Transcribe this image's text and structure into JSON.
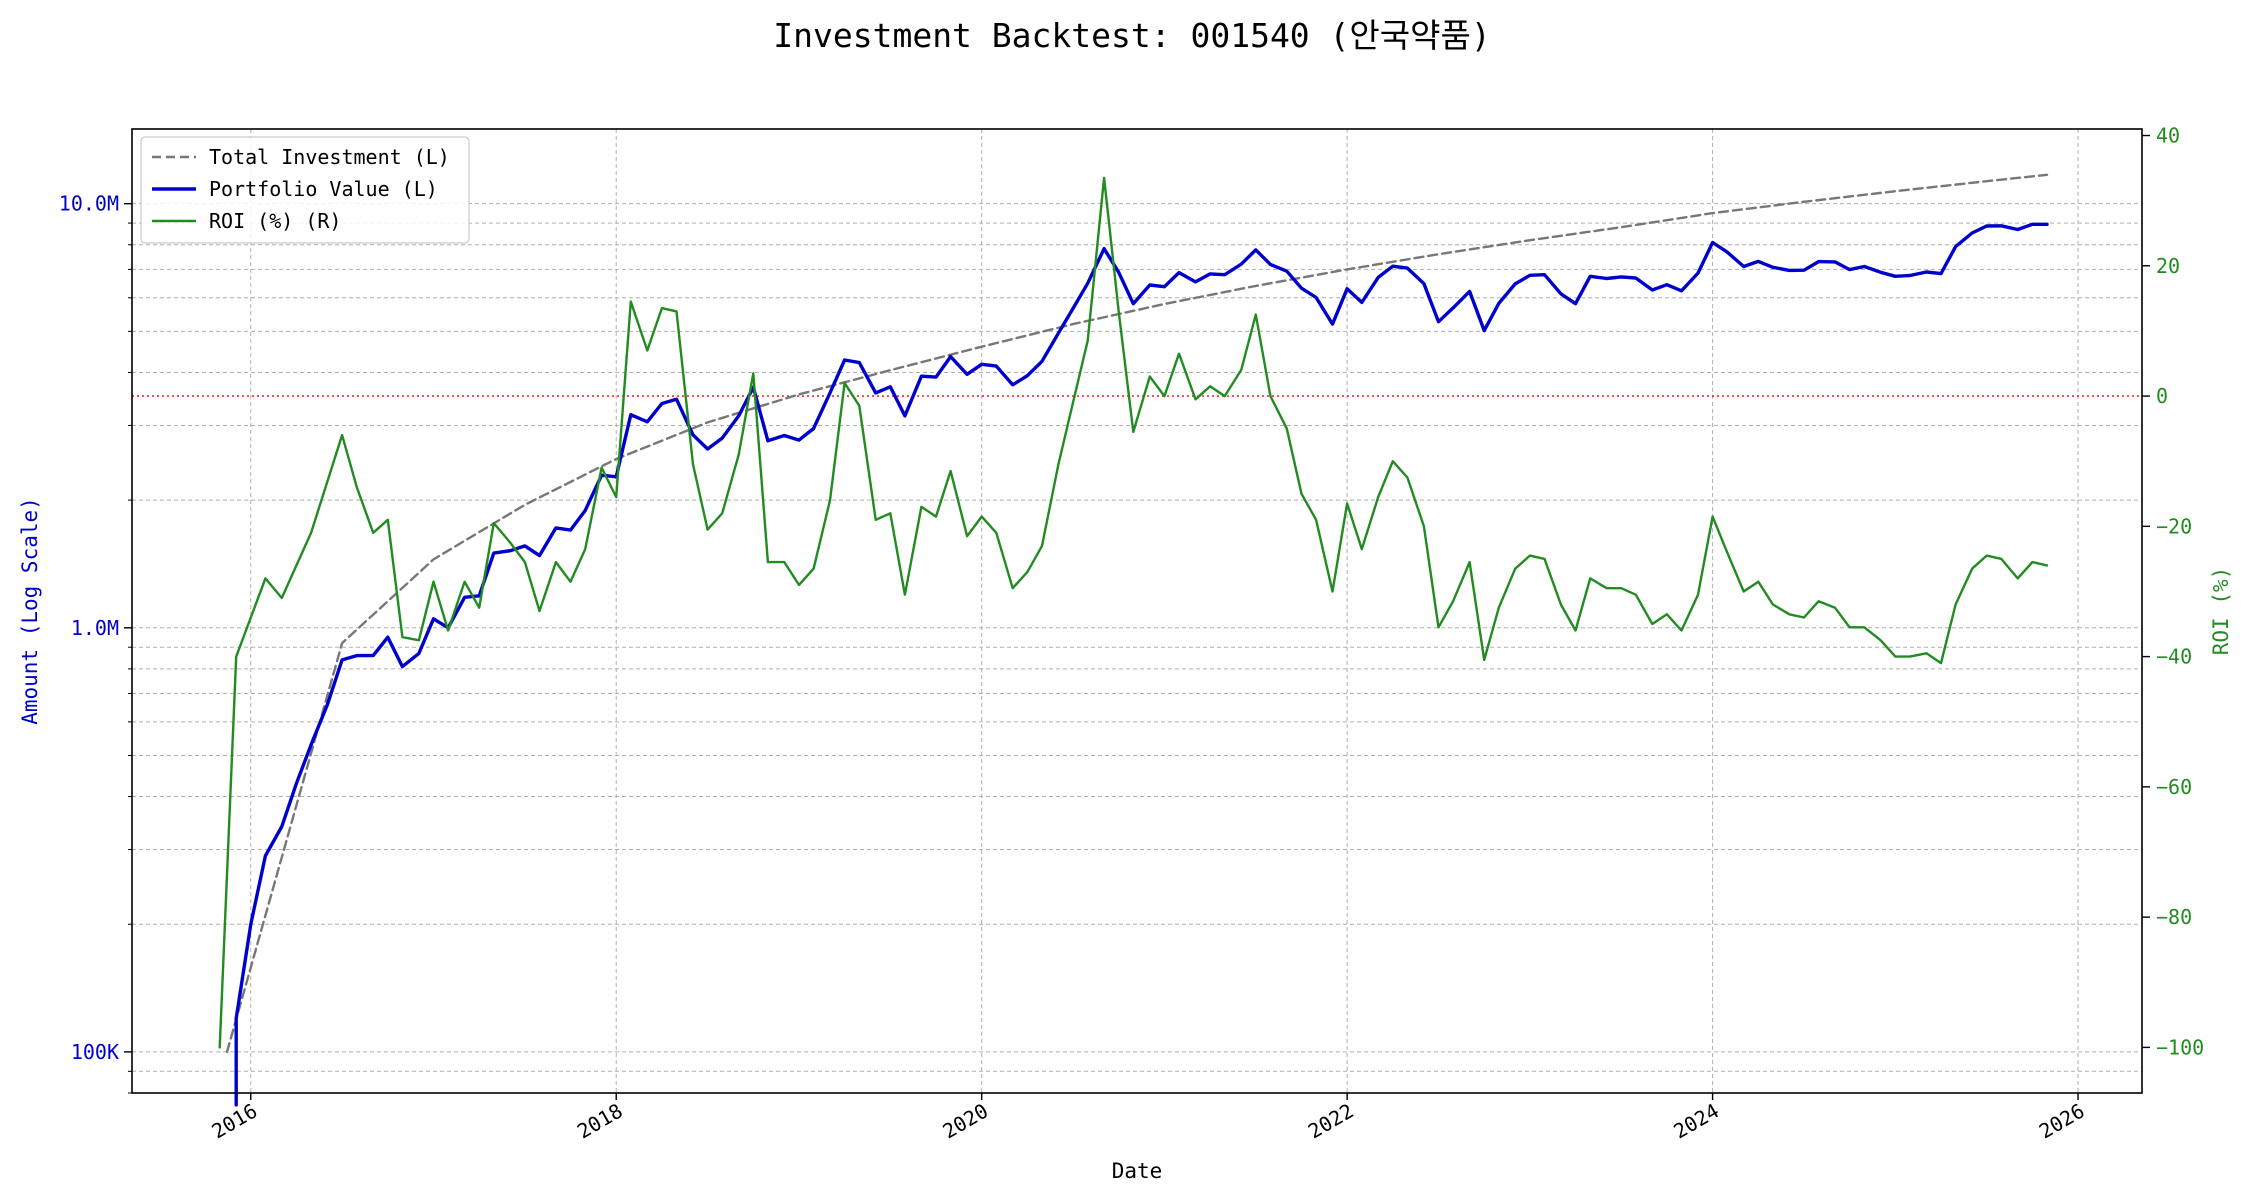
{
  "chart_data": {
    "type": "line",
    "title": "Investment Backtest: 001540 (안국약품)",
    "xlabel": "Date",
    "ylabel_left": "Amount (Log Scale)",
    "ylabel_right": "ROI (%)",
    "x_ticks": [
      "2016",
      "2018",
      "2020",
      "2022",
      "2024",
      "2026"
    ],
    "x_range": [
      2015.35,
      2026.35
    ],
    "left_axis": {
      "scale": "log",
      "ylim": [
        80000,
        15000000
      ],
      "ticks": [
        100000,
        1000000,
        10000000
      ],
      "tick_labels": [
        "100K",
        "1.0M",
        "10.0M"
      ],
      "color": "#0000cc"
    },
    "right_axis": {
      "scale": "linear",
      "ylim": [
        -107,
        41
      ],
      "ticks": [
        -100,
        -80,
        -60,
        -40,
        -20,
        0,
        20,
        40
      ],
      "tick_labels": [
        "−100",
        "−80",
        "−60",
        "−40",
        "−20",
        "0",
        "20",
        "40"
      ],
      "color": "#228b22"
    },
    "grid": true,
    "reference_line": {
      "axis": "right",
      "value": 0,
      "color": "#ff0000",
      "style": "dotted"
    },
    "legend": {
      "position": "top-left",
      "entries": [
        "Total Investment (L)",
        "Portfolio Value (L)",
        "ROI (%) (R)"
      ]
    },
    "series": [
      {
        "name": "Total Investment (L)",
        "axis": "left",
        "color": "#777777",
        "style": "dashed",
        "x": [
          2015.87,
          2016.5,
          2017.0,
          2017.5,
          2018.0,
          2018.5,
          2019.0,
          2019.5,
          2020.0,
          2020.5,
          2021.0,
          2021.5,
          2022.0,
          2022.5,
          2023.0,
          2023.5,
          2024.0,
          2024.5,
          2025.0,
          2025.5,
          2025.83
        ],
        "y": [
          100000,
          920000,
          1450000,
          1950000,
          2500000,
          3050000,
          3550000,
          4050000,
          4600000,
          5200000,
          5800000,
          6400000,
          7000000,
          7600000,
          8200000,
          8800000,
          9500000,
          10100000,
          10700000,
          11300000,
          11700000
        ]
      },
      {
        "name": "Portfolio Value (L)",
        "axis": "left",
        "color": "#0000cc",
        "style": "solid",
        "x": [
          2015.92,
          2015.92,
          2016.0,
          2016.08,
          2016.17,
          2016.25,
          2016.33,
          2016.42,
          2016.5,
          2016.58,
          2016.67,
          2016.75,
          2016.83,
          2016.92,
          2017.0,
          2017.08,
          2017.17,
          2017.25,
          2017.33,
          2017.42,
          2017.5,
          2017.58,
          2017.67,
          2017.75,
          2017.83,
          2017.92,
          2018.0,
          2018.08,
          2018.17,
          2018.25,
          2018.33,
          2018.42,
          2018.5,
          2018.58,
          2018.67,
          2018.75,
          2018.83,
          2018.92,
          2019.0,
          2019.08,
          2019.17,
          2019.25,
          2019.33,
          2019.42,
          2019.5,
          2019.58,
          2019.67,
          2019.75,
          2019.83,
          2019.92,
          2020.0,
          2020.08,
          2020.17,
          2020.25,
          2020.33,
          2020.42,
          2020.5,
          2020.58,
          2020.67,
          2020.75,
          2020.83,
          2020.92,
          2021.0,
          2021.08,
          2021.17,
          2021.25,
          2021.33,
          2021.42,
          2021.5,
          2021.58,
          2021.67,
          2021.75,
          2021.83,
          2021.92,
          2022.0,
          2022.08,
          2022.17,
          2022.25,
          2022.33,
          2022.42,
          2022.5,
          2022.58,
          2022.67,
          2022.75,
          2022.83,
          2022.92,
          2023.0,
          2023.08,
          2023.17,
          2023.25,
          2023.33,
          2023.42,
          2023.5,
          2023.58,
          2023.67,
          2023.75,
          2023.83,
          2023.92,
          2024.0,
          2024.08,
          2024.17,
          2024.25,
          2024.33,
          2024.42,
          2024.5,
          2024.58,
          2024.67,
          2024.75,
          2024.83,
          2024.92,
          2025.0,
          2025.08,
          2025.17,
          2025.25,
          2025.33,
          2025.42,
          2025.5,
          2025.58,
          2025.67,
          2025.75,
          2025.83
        ],
        "y": [
          75000,
          120000,
          200000,
          290000,
          340000,
          430000,
          530000,
          660000,
          840000,
          860000,
          860000,
          950000,
          810000,
          870000,
          1050000,
          1000000,
          1180000,
          1190000,
          1500000,
          1520000,
          1560000,
          1480000,
          1720000,
          1700000,
          1890000,
          2290000,
          2270000,
          3180000,
          3060000,
          3380000,
          3460000,
          2850000,
          2640000,
          2800000,
          3160000,
          3690000,
          2760000,
          2840000,
          2770000,
          2950000,
          3580000,
          4280000,
          4220000,
          3580000,
          3700000,
          3160000,
          3920000,
          3900000,
          4360000,
          3960000,
          4180000,
          4140000,
          3740000,
          3930000,
          4250000,
          4950000,
          5660000,
          6490000,
          7830000,
          6890000,
          5810000,
          6430000,
          6370000,
          6880000,
          6540000,
          6830000,
          6800000,
          7200000,
          7780000,
          7190000,
          6930000,
          6320000,
          6010000,
          5200000,
          6300000,
          5850000,
          6700000,
          7120000,
          7050000,
          6480000,
          5270000,
          5680000,
          6210000,
          5020000,
          5820000,
          6470000,
          6780000,
          6800000,
          6130000,
          5810000,
          6740000,
          6660000,
          6720000,
          6680000,
          6260000,
          6440000,
          6230000,
          6860000,
          8100000,
          7690000,
          7110000,
          7310000,
          7080000,
          6960000,
          6970000,
          7300000,
          7290000,
          6990000,
          7110000,
          6890000,
          6740000,
          6770000,
          6900000,
          6840000,
          7920000,
          8530000,
          8860000,
          8870000,
          8690000,
          8940000,
          8940000
        ]
      },
      {
        "name": "ROI (%) (R)",
        "axis": "right",
        "color": "#228b22",
        "style": "solid",
        "x": [
          2015.83,
          2015.92,
          2016.08,
          2016.17,
          2016.33,
          2016.5,
          2016.58,
          2016.67,
          2016.75,
          2016.83,
          2016.92,
          2017.0,
          2017.08,
          2017.17,
          2017.25,
          2017.33,
          2017.42,
          2017.5,
          2017.58,
          2017.67,
          2017.75,
          2017.83,
          2017.92,
          2018.0,
          2018.08,
          2018.17,
          2018.25,
          2018.33,
          2018.42,
          2018.5,
          2018.58,
          2018.67,
          2018.75,
          2018.83,
          2018.92,
          2019.0,
          2019.08,
          2019.17,
          2019.25,
          2019.33,
          2019.42,
          2019.5,
          2019.58,
          2019.67,
          2019.75,
          2019.83,
          2019.92,
          2020.0,
          2020.08,
          2020.17,
          2020.25,
          2020.33,
          2020.42,
          2020.5,
          2020.58,
          2020.67,
          2020.75,
          2020.83,
          2020.92,
          2021.0,
          2021.08,
          2021.17,
          2021.25,
          2021.33,
          2021.42,
          2021.5,
          2021.58,
          2021.67,
          2021.75,
          2021.83,
          2021.92,
          2022.0,
          2022.08,
          2022.17,
          2022.25,
          2022.33,
          2022.42,
          2022.5,
          2022.58,
          2022.67,
          2022.75,
          2022.83,
          2022.92,
          2023.0,
          2023.08,
          2023.17,
          2023.25,
          2023.33,
          2023.42,
          2023.5,
          2023.58,
          2023.67,
          2023.75,
          2023.83,
          2023.92,
          2024.0,
          2024.08,
          2024.17,
          2024.25,
          2024.33,
          2024.42,
          2024.5,
          2024.58,
          2024.67,
          2024.75,
          2024.83,
          2024.92,
          2025.0,
          2025.08,
          2025.17,
          2025.25,
          2025.33,
          2025.42,
          2025.5,
          2025.58,
          2025.67,
          2025.75,
          2025.83
        ],
        "y": [
          -100,
          -40,
          -28,
          -31,
          -21,
          -6,
          -14,
          -21,
          -19,
          -37,
          -37.5,
          -28.5,
          -36,
          -28.5,
          -32.5,
          -19.5,
          -22.5,
          -25.5,
          -33,
          -25.5,
          -28.5,
          -23.5,
          -11,
          -15.5,
          14.5,
          7,
          13.5,
          13,
          -10.5,
          -20.5,
          -18,
          -9,
          3.5,
          -25.5,
          -25.5,
          -29,
          -26.5,
          -16,
          2,
          -1.5,
          -19,
          -18,
          -30.5,
          -17,
          -18.5,
          -11.5,
          -21.5,
          -18.5,
          -21,
          -29.5,
          -27,
          -23,
          -10.5,
          -1,
          8.5,
          33.5,
          13,
          -5.5,
          3,
          0,
          6.5,
          -0.5,
          1.5,
          0,
          4,
          12.5,
          0,
          -5,
          -15,
          -19,
          -30,
          -16.5,
          -23.5,
          -15.5,
          -10,
          -12.5,
          -20,
          -35.5,
          -31.5,
          -25.5,
          -40.5,
          -32.5,
          -26.5,
          -24.5,
          -25,
          -32,
          -36,
          -28,
          -29.5,
          -29.5,
          -30.5,
          -35,
          -33.5,
          -36,
          -30.5,
          -18.5,
          -24,
          -30,
          -28.5,
          -32,
          -33.5,
          -34,
          -31.5,
          -32.5,
          -35.5,
          -35.5,
          -37.5,
          -40,
          -40,
          -39.5,
          -41,
          -32,
          -26.5,
          -24.5,
          -25,
          -28,
          -25.5,
          -26
        ]
      }
    ]
  }
}
